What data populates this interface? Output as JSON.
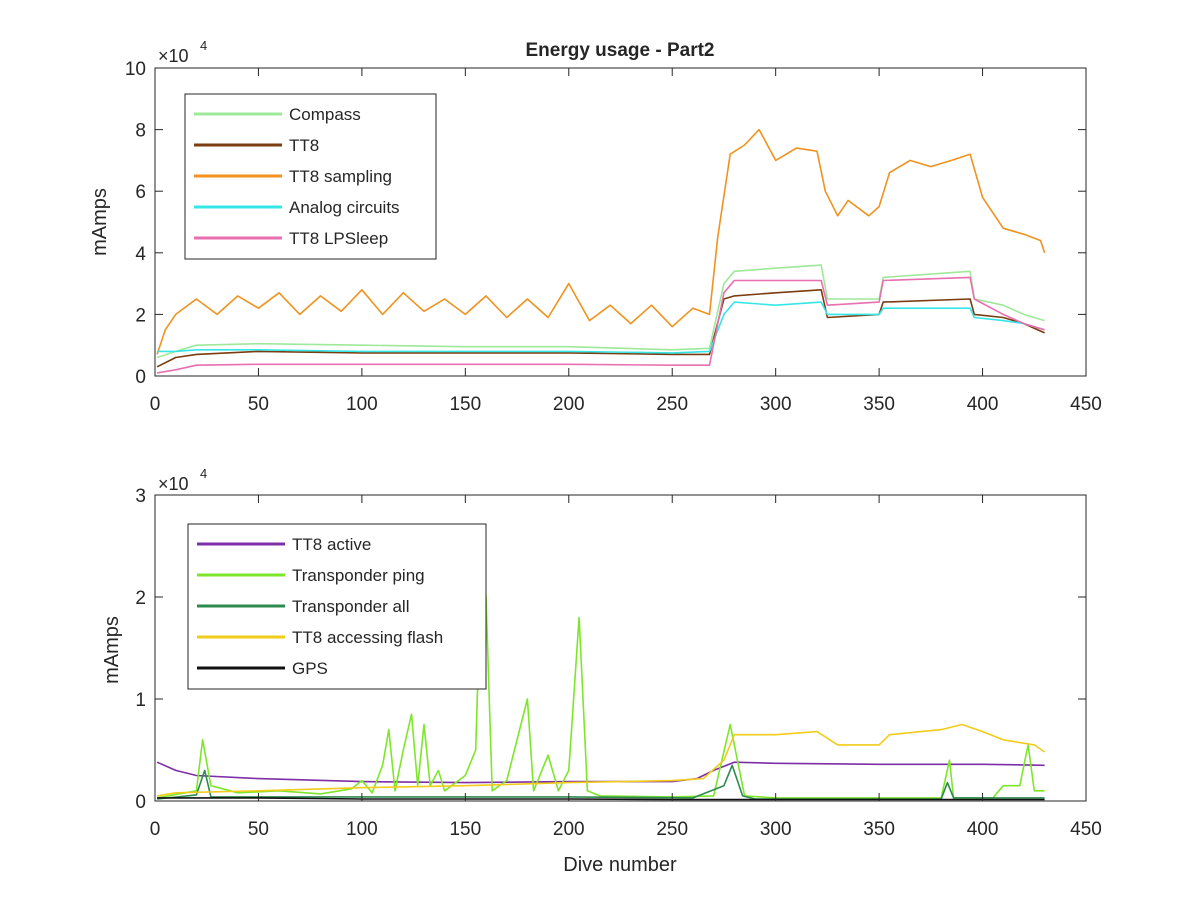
{
  "chart_data": [
    {
      "type": "line",
      "title": "Energy usage - Part2",
      "xlabel": "",
      "ylabel": "mAmps",
      "xlim": [
        0,
        450
      ],
      "ylim": [
        0,
        100000
      ],
      "exponent_label": "×10",
      "exponent_power": "4",
      "x_ticks": [
        0,
        50,
        100,
        150,
        200,
        250,
        300,
        350,
        400,
        450
      ],
      "x_tick_labels": [
        "0",
        "50",
        "100",
        "150",
        "200",
        "250",
        "300",
        "350",
        "400",
        "450"
      ],
      "y_ticks": [
        0,
        20000,
        40000,
        60000,
        80000,
        100000
      ],
      "y_tick_labels": [
        "0",
        "2",
        "4",
        "6",
        "8",
        "10"
      ],
      "grid": false,
      "legend_position": "top-left",
      "series": [
        {
          "name": "Compass",
          "color": "#9ee89a",
          "points": [
            [
              1,
              6000
            ],
            [
              10,
              8000
            ],
            [
              20,
              10000
            ],
            [
              50,
              10500
            ],
            [
              100,
              10000
            ],
            [
              150,
              9500
            ],
            [
              200,
              9500
            ],
            [
              250,
              8500
            ],
            [
              268,
              9000
            ],
            [
              275,
              30000
            ],
            [
              280,
              34000
            ],
            [
              300,
              35000
            ],
            [
              322,
              36000
            ],
            [
              325,
              25000
            ],
            [
              350,
              25000
            ],
            [
              352,
              32000
            ],
            [
              394,
              34000
            ],
            [
              396,
              25000
            ],
            [
              410,
              23000
            ],
            [
              420,
              20000
            ],
            [
              430,
              18000
            ]
          ]
        },
        {
          "name": "TT8",
          "color": "#7a3c10",
          "points": [
            [
              1,
              3000
            ],
            [
              10,
              6000
            ],
            [
              20,
              7000
            ],
            [
              50,
              8000
            ],
            [
              100,
              7500
            ],
            [
              150,
              7500
            ],
            [
              200,
              7500
            ],
            [
              250,
              7000
            ],
            [
              268,
              7000
            ],
            [
              275,
              25000
            ],
            [
              280,
              26000
            ],
            [
              300,
              27000
            ],
            [
              322,
              28000
            ],
            [
              325,
              19000
            ],
            [
              350,
              20000
            ],
            [
              352,
              24000
            ],
            [
              394,
              25000
            ],
            [
              396,
              20000
            ],
            [
              410,
              19000
            ],
            [
              420,
              17000
            ],
            [
              430,
              14000
            ]
          ]
        },
        {
          "name": "TT8 sampling",
          "color": "#f0921e",
          "points": [
            [
              1,
              7000
            ],
            [
              5,
              15000
            ],
            [
              10,
              20000
            ],
            [
              20,
              25000
            ],
            [
              30,
              20000
            ],
            [
              40,
              26000
            ],
            [
              50,
              22000
            ],
            [
              60,
              27000
            ],
            [
              70,
              20000
            ],
            [
              80,
              26000
            ],
            [
              90,
              21000
            ],
            [
              100,
              28000
            ],
            [
              110,
              20000
            ],
            [
              120,
              27000
            ],
            [
              130,
              21000
            ],
            [
              140,
              25000
            ],
            [
              150,
              20000
            ],
            [
              160,
              26000
            ],
            [
              170,
              19000
            ],
            [
              180,
              25000
            ],
            [
              190,
              19000
            ],
            [
              200,
              30000
            ],
            [
              210,
              18000
            ],
            [
              220,
              23000
            ],
            [
              230,
              17000
            ],
            [
              240,
              23000
            ],
            [
              250,
              16000
            ],
            [
              260,
              22000
            ],
            [
              268,
              20000
            ],
            [
              272,
              45000
            ],
            [
              278,
              72000
            ],
            [
              285,
              75000
            ],
            [
              292,
              80000
            ],
            [
              300,
              70000
            ],
            [
              310,
              74000
            ],
            [
              320,
              73000
            ],
            [
              324,
              60000
            ],
            [
              330,
              52000
            ],
            [
              335,
              57000
            ],
            [
              345,
              52000
            ],
            [
              350,
              55000
            ],
            [
              355,
              66000
            ],
            [
              365,
              70000
            ],
            [
              375,
              68000
            ],
            [
              385,
              70000
            ],
            [
              394,
              72000
            ],
            [
              400,
              58000
            ],
            [
              410,
              48000
            ],
            [
              420,
              46000
            ],
            [
              428,
              44000
            ],
            [
              430,
              40000
            ]
          ]
        },
        {
          "name": "Analog circuits",
          "color": "#35e6e6",
          "points": [
            [
              1,
              8000
            ],
            [
              10,
              8000
            ],
            [
              20,
              8500
            ],
            [
              50,
              8500
            ],
            [
              100,
              8000
            ],
            [
              150,
              8000
            ],
            [
              200,
              8000
            ],
            [
              250,
              7500
            ],
            [
              268,
              8000
            ],
            [
              275,
              20000
            ],
            [
              280,
              24000
            ],
            [
              300,
              23000
            ],
            [
              322,
              24000
            ],
            [
              325,
              20000
            ],
            [
              350,
              20000
            ],
            [
              352,
              22000
            ],
            [
              394,
              22000
            ],
            [
              396,
              19000
            ],
            [
              410,
              18000
            ],
            [
              420,
              17000
            ],
            [
              430,
              15000
            ]
          ]
        },
        {
          "name": "TT8 LPSleep",
          "color": "#e86fb0",
          "points": [
            [
              1,
              1000
            ],
            [
              10,
              2000
            ],
            [
              20,
              3500
            ],
            [
              50,
              3800
            ],
            [
              100,
              3800
            ],
            [
              150,
              3800
            ],
            [
              200,
              3800
            ],
            [
              250,
              3500
            ],
            [
              268,
              3500
            ],
            [
              275,
              27000
            ],
            [
              280,
              31000
            ],
            [
              300,
              31000
            ],
            [
              322,
              31000
            ],
            [
              325,
              23000
            ],
            [
              350,
              24000
            ],
            [
              352,
              31000
            ],
            [
              394,
              32000
            ],
            [
              396,
              25000
            ],
            [
              410,
              20000
            ],
            [
              420,
              17000
            ],
            [
              430,
              15000
            ]
          ]
        }
      ]
    },
    {
      "type": "line",
      "title": "",
      "xlabel": "Dive number",
      "ylabel": "mAmps",
      "xlim": [
        0,
        450
      ],
      "ylim": [
        0,
        30000
      ],
      "exponent_label": "×10",
      "exponent_power": "4",
      "x_ticks": [
        0,
        50,
        100,
        150,
        200,
        250,
        300,
        350,
        400,
        450
      ],
      "x_tick_labels": [
        "0",
        "50",
        "100",
        "150",
        "200",
        "250",
        "300",
        "350",
        "400",
        "450"
      ],
      "y_ticks": [
        0,
        10000,
        20000,
        30000
      ],
      "y_tick_labels": [
        "0",
        "1",
        "2",
        "3"
      ],
      "grid": false,
      "legend_position": "top-left",
      "series": [
        {
          "name": "TT8 active",
          "color": "#7e2fa8",
          "points": [
            [
              1,
              3800
            ],
            [
              10,
              3000
            ],
            [
              20,
              2500
            ],
            [
              50,
              2200
            ],
            [
              100,
              1900
            ],
            [
              150,
              1800
            ],
            [
              200,
              1900
            ],
            [
              250,
              1900
            ],
            [
              262,
              2200
            ],
            [
              270,
              3000
            ],
            [
              280,
              3800
            ],
            [
              300,
              3700
            ],
            [
              350,
              3600
            ],
            [
              400,
              3600
            ],
            [
              430,
              3500
            ]
          ]
        },
        {
          "name": "Transponder ping",
          "color": "#7ee62a",
          "points": [
            [
              1,
              300
            ],
            [
              20,
              1000
            ],
            [
              23,
              6000
            ],
            [
              27,
              1500
            ],
            [
              40,
              800
            ],
            [
              60,
              1000
            ],
            [
              80,
              700
            ],
            [
              95,
              1200
            ],
            [
              100,
              2000
            ],
            [
              105,
              800
            ],
            [
              110,
              3500
            ],
            [
              113,
              7000
            ],
            [
              116,
              1000
            ],
            [
              120,
              5000
            ],
            [
              124,
              8500
            ],
            [
              127,
              1500
            ],
            [
              130,
              7500
            ],
            [
              133,
              1500
            ],
            [
              137,
              3000
            ],
            [
              140,
              1000
            ],
            [
              150,
              2500
            ],
            [
              155,
              5000
            ],
            [
              158,
              25000
            ],
            [
              160,
              20000
            ],
            [
              163,
              1000
            ],
            [
              170,
              2000
            ],
            [
              180,
              10000
            ],
            [
              183,
              1000
            ],
            [
              190,
              4500
            ],
            [
              195,
              1000
            ],
            [
              200,
              3000
            ],
            [
              205,
              18000
            ],
            [
              209,
              1000
            ],
            [
              215,
              500
            ],
            [
              250,
              400
            ],
            [
              270,
              500
            ],
            [
              278,
              7500
            ],
            [
              285,
              500
            ],
            [
              300,
              300
            ],
            [
              380,
              300
            ],
            [
              384,
              4000
            ],
            [
              386,
              300
            ],
            [
              405,
              300
            ],
            [
              410,
              1500
            ],
            [
              418,
              1500
            ],
            [
              422,
              5500
            ],
            [
              425,
              1000
            ],
            [
              430,
              1000
            ]
          ]
        },
        {
          "name": "Transponder all",
          "color": "#2e8b4e",
          "points": [
            [
              1,
              200
            ],
            [
              20,
              600
            ],
            [
              24,
              3000
            ],
            [
              27,
              400
            ],
            [
              100,
              400
            ],
            [
              150,
              400
            ],
            [
              200,
              400
            ],
            [
              260,
              300
            ],
            [
              275,
              1500
            ],
            [
              279,
              3500
            ],
            [
              284,
              500
            ],
            [
              290,
              200
            ],
            [
              380,
              200
            ],
            [
              383,
              1800
            ],
            [
              386,
              300
            ],
            [
              430,
              300
            ]
          ]
        },
        {
          "name": "TT8 accessing flash",
          "color": "#f2cc1a",
          "points": [
            [
              1,
              500
            ],
            [
              10,
              800
            ],
            [
              50,
              1000
            ],
            [
              100,
              1300
            ],
            [
              150,
              1500
            ],
            [
              200,
              1800
            ],
            [
              250,
              2000
            ],
            [
              265,
              2200
            ],
            [
              275,
              4000
            ],
            [
              280,
              6500
            ],
            [
              300,
              6500
            ],
            [
              320,
              6800
            ],
            [
              330,
              5500
            ],
            [
              350,
              5500
            ],
            [
              355,
              6500
            ],
            [
              380,
              7000
            ],
            [
              390,
              7500
            ],
            [
              400,
              6800
            ],
            [
              410,
              6000
            ],
            [
              425,
              5500
            ],
            [
              430,
              4800
            ]
          ]
        },
        {
          "name": "GPS",
          "color": "#111111",
          "points": [
            [
              1,
              300
            ],
            [
              50,
              300
            ],
            [
              100,
              200
            ],
            [
              150,
              200
            ],
            [
              200,
              200
            ],
            [
              250,
              150
            ],
            [
              300,
              150
            ],
            [
              350,
              150
            ],
            [
              400,
              150
            ],
            [
              430,
              150
            ]
          ]
        }
      ]
    }
  ]
}
